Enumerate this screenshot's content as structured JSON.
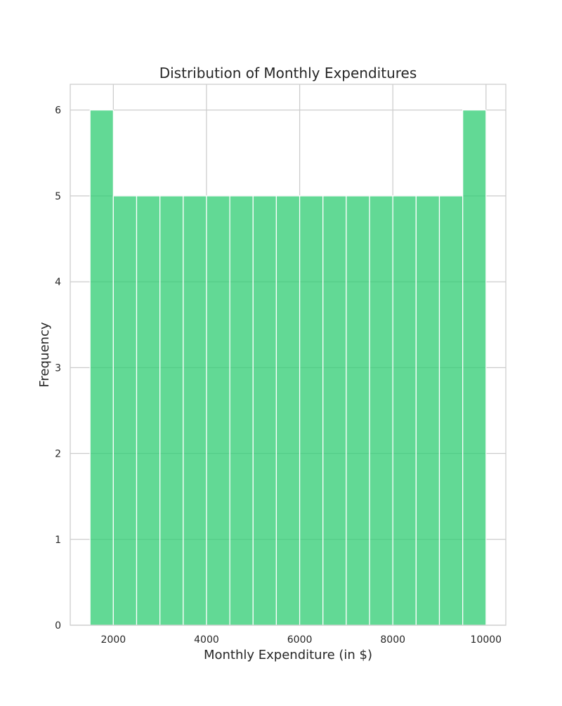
{
  "chart_data": {
    "type": "bar",
    "subtype": "histogram",
    "title": "Distribution of Monthly Expenditures",
    "xlabel": "Monthly Expenditure (in $)",
    "ylabel": "Frequency",
    "bins": [
      {
        "start": 1500,
        "end": 2000,
        "count": 6
      },
      {
        "start": 2000,
        "end": 2500,
        "count": 5
      },
      {
        "start": 2500,
        "end": 3000,
        "count": 5
      },
      {
        "start": 3000,
        "end": 3500,
        "count": 5
      },
      {
        "start": 3500,
        "end": 4000,
        "count": 5
      },
      {
        "start": 4000,
        "end": 4500,
        "count": 5
      },
      {
        "start": 4500,
        "end": 5000,
        "count": 5
      },
      {
        "start": 5000,
        "end": 5500,
        "count": 5
      },
      {
        "start": 5500,
        "end": 6000,
        "count": 5
      },
      {
        "start": 6000,
        "end": 6500,
        "count": 5
      },
      {
        "start": 6500,
        "end": 7000,
        "count": 5
      },
      {
        "start": 7000,
        "end": 7500,
        "count": 5
      },
      {
        "start": 7500,
        "end": 8000,
        "count": 5
      },
      {
        "start": 8000,
        "end": 8500,
        "count": 5
      },
      {
        "start": 8500,
        "end": 9000,
        "count": 5
      },
      {
        "start": 9000,
        "end": 9500,
        "count": 5
      },
      {
        "start": 9500,
        "end": 10000,
        "count": 6
      }
    ],
    "xticks": [
      2000,
      4000,
      6000,
      8000,
      10000
    ],
    "yticks": [
      0,
      1,
      2,
      3,
      4,
      5,
      6
    ],
    "xlim": [
      1075,
      10425
    ],
    "ylim": [
      0,
      6.3
    ],
    "grid": true,
    "bar_color": "#2ecc71",
    "bar_opacity": 0.75,
    "grid_color": "#cccccc"
  }
}
